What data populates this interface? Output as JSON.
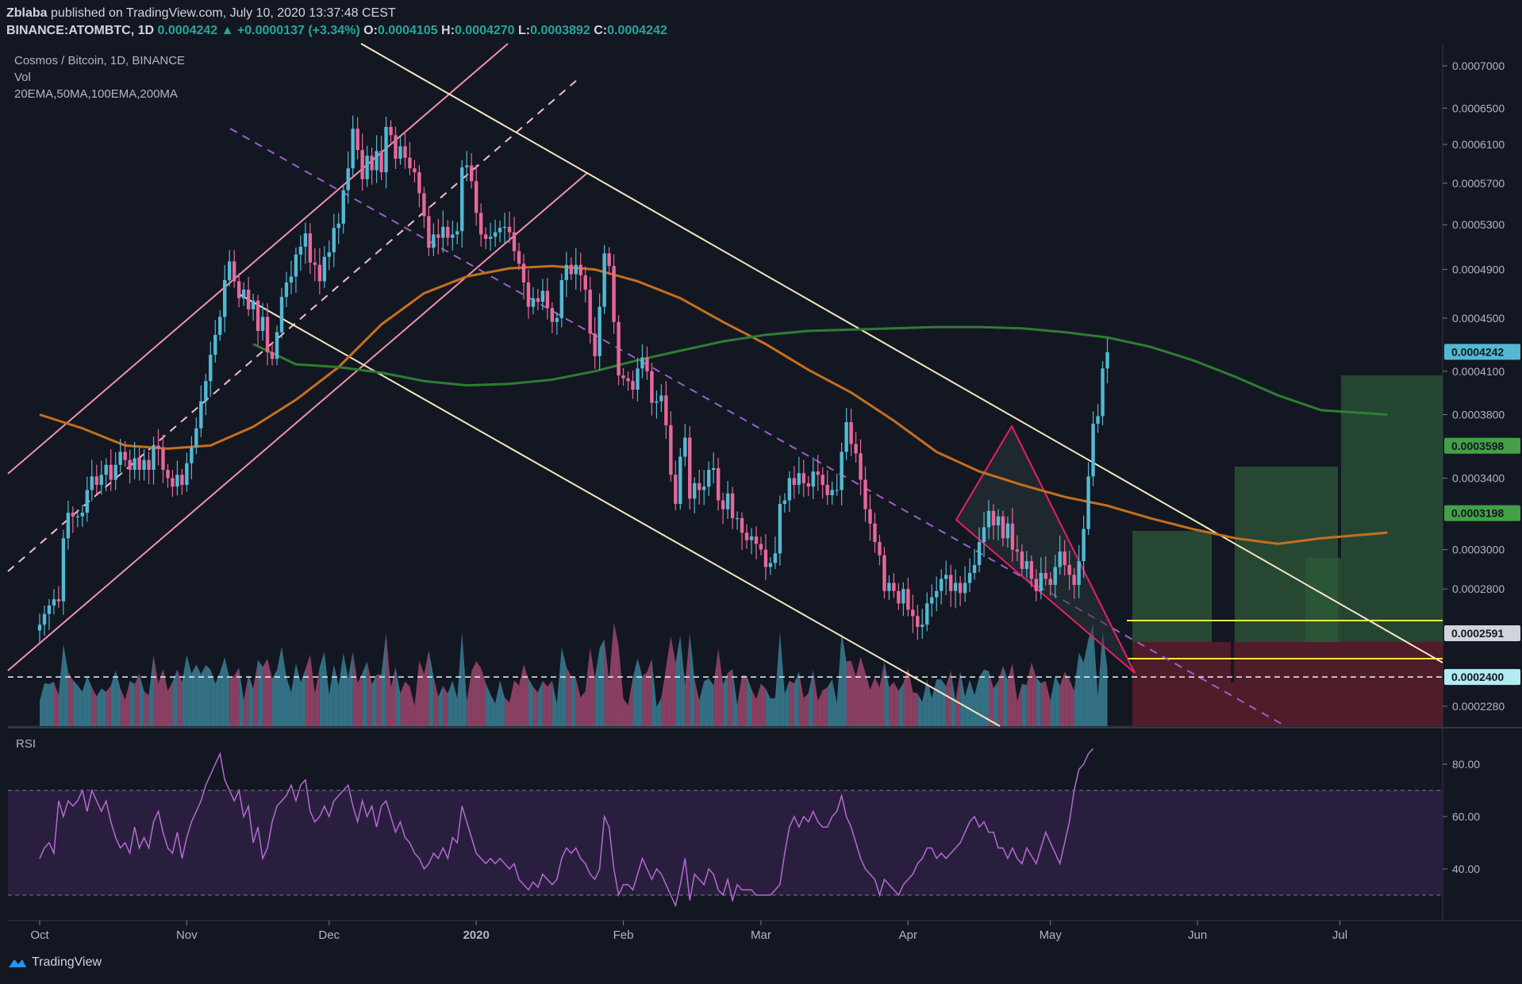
{
  "header": {
    "publisher": "Zblaba",
    "published_text": "published on TradingView.com, July 10, 2020 13:37:48 CEST",
    "symbol": "BINANCE:ATOMBTC, 1D",
    "last": "0.0004242",
    "arrow": "▲",
    "change": "+0.0000137 (+3.34%)",
    "o_label": "O:",
    "o": "0.0004105",
    "h_label": "H:",
    "h": "0.0004270",
    "l_label": "L:",
    "l": "0.0003892",
    "c_label": "C:",
    "c": "0.0004242"
  },
  "legend": {
    "title": "Cosmos / Bitcoin, 1D, BINANCE",
    "vol": "Vol",
    "ma": "20EMA,50MA,100EMA,200MA"
  },
  "footer": {
    "brand": "TradingView"
  },
  "colors": {
    "background": "#131722",
    "up": "#53b9d3",
    "down": "#e8679a",
    "ema100": "#c66f1d",
    "ma200": "#2e7d32",
    "trendline": "#f5e6c0",
    "channel": "#f48fb1",
    "rsi_line": "#b36bd1",
    "rsi_band": "#2a1e3f"
  },
  "chart_data": [
    {
      "type": "candlestick",
      "title": "Cosmos / Bitcoin, 1D, BINANCE",
      "x_ticks": [
        "Oct",
        "Nov",
        "Dec",
        "2020",
        "Feb",
        "Mar",
        "Apr",
        "May",
        "Jun",
        "Jul"
      ],
      "x_tick_days": [
        0,
        31,
        61,
        92,
        123,
        152,
        183,
        213,
        244,
        274
      ],
      "y_axis_scale": "log",
      "y_ticks": [
        "0.0007000",
        "0.0006500",
        "0.0006100",
        "0.0005700",
        "0.0005300",
        "0.0004900",
        "0.0004500",
        "0.0004100",
        "0.0003800",
        "0.0003400",
        "0.0003000",
        "0.0002800",
        "0.0002280"
      ],
      "y_tick_values": [
        0.0007,
        0.00065,
        0.00061,
        0.00057,
        0.00053,
        0.00049,
        0.00045,
        0.00041,
        0.00038,
        0.00034,
        0.0003,
        0.00028,
        0.000228
      ],
      "price_labels": [
        {
          "text": "0.0004242",
          "value": 0.0004242,
          "color": "#53b9d3"
        },
        {
          "text": "0.0003598",
          "value": 0.0003598,
          "color": "#43a047"
        },
        {
          "text": "0.0003198",
          "value": 0.0003198,
          "color": "#43a047"
        },
        {
          "text": "0.0002591",
          "value": 0.0002591,
          "color": "#d1d4dc"
        },
        {
          "text": "0.0002400",
          "value": 0.00024,
          "color": "#b2ebf2"
        }
      ],
      "start_date": "2019-09-27",
      "closes": [
        0.000263,
        0.000268,
        0.000272,
        0.000275,
        0.000274,
        0.000306,
        0.00032,
        0.000318,
        0.000318,
        0.00032,
        0.000333,
        0.000341,
        0.000336,
        0.000342,
        0.000348,
        0.000339,
        0.000348,
        0.000356,
        0.000351,
        0.000345,
        0.000352,
        0.000345,
        0.000351,
        0.000345,
        0.00036,
        0.000358,
        0.000345,
        0.00034,
        0.000335,
        0.000342,
        0.000336,
        0.000349,
        0.000359,
        0.000371,
        0.000389,
        0.000403,
        0.000422,
        0.000437,
        0.000451,
        0.000481,
        0.000497,
        0.00048,
        0.000466,
        0.000473,
        0.000457,
        0.000464,
        0.00044,
        0.000451,
        0.000424,
        0.000419,
        0.000439,
        0.000467,
        0.000479,
        0.000484,
        0.000503,
        0.00051,
        0.000522,
        0.000496,
        0.000494,
        0.00048,
        0.000501,
        0.000505,
        0.000527,
        0.000531,
        0.000563,
        0.000585,
        0.000627,
        0.000604,
        0.000574,
        0.000598,
        0.000583,
        0.000603,
        0.000581,
        0.000629,
        0.00062,
        0.000595,
        0.000608,
        0.000596,
        0.000585,
        0.000581,
        0.00056,
        0.000538,
        0.000509,
        0.000521,
        0.000518,
        0.000528,
        0.000518,
        0.000521,
        0.000524,
        0.000586,
        0.000588,
        0.000572,
        0.000541,
        0.000521,
        0.000517,
        0.000519,
        0.000523,
        0.000527,
        0.000528,
        0.000523,
        0.000506,
        0.000495,
        0.000479,
        0.000459,
        0.000466,
        0.000463,
        0.000472,
        0.000458,
        0.000447,
        0.00045,
        0.000481,
        0.000494,
        0.000486,
        0.000494,
        0.000485,
        0.000473,
        0.000438,
        0.000421,
        0.000459,
        0.000504,
        0.000493,
        0.000447,
        0.000407,
        0.000405,
        0.000403,
        0.000397,
        0.000412,
        0.00042,
        0.00041,
        0.000388,
        0.000389,
        0.000393,
        0.000373,
        0.000342,
        0.000325,
        0.000353,
        0.000365,
        0.000328,
        0.000337,
        0.000333,
        0.000335,
        0.000345,
        0.000346,
        0.000327,
        0.000322,
        0.000331,
        0.000317,
        0.000317,
        0.000309,
        0.000305,
        0.000307,
        0.000303,
        0.0003,
        0.000291,
        0.000293,
        0.000298,
        0.000325,
        0.000327,
        0.00034,
        0.000336,
        0.000343,
        0.000337,
        0.000335,
        0.000344,
        0.000342,
        0.000336,
        0.00033,
        0.000333,
        0.000333,
        0.000356,
        0.000375,
        0.000361,
        0.000355,
        0.000339,
        0.000322,
        0.000314,
        0.000304,
        0.000297,
        0.000279,
        0.000283,
        0.000279,
        0.000273,
        0.00028,
        0.00027,
        0.000267,
        0.000262,
        0.000263,
        0.000273,
        0.000276,
        0.000279,
        0.000285,
        0.000287,
        0.000279,
        0.000283,
        0.000278,
        0.000283,
        0.000288,
        0.000292,
        0.000304,
        0.000312,
        0.000321,
        0.000313,
        0.000318,
        0.000306,
        0.000314,
        0.0003,
        0.000299,
        0.00029,
        0.000294,
        0.000285,
        0.000279,
        0.000288,
        0.000285,
        0.000282,
        0.000291,
        0.000299,
        0.000292,
        0.000287,
        0.000282,
        0.000294,
        0.000311,
        0.000341,
        0.000374,
        0.000379,
        0.000412,
        0.000424
      ],
      "series": [
        {
          "name": "100EMA",
          "color": "#c66f1d",
          "values": [
            0.00038,
            0.000371,
            0.00036,
            0.000358,
            0.00036,
            0.000372,
            0.00039,
            0.000413,
            0.000445,
            0.00047,
            0.000484,
            0.000491,
            0.000493,
            0.00049,
            0.00048,
            0.000466,
            0.000447,
            0.00043,
            0.000411,
            0.000395,
            0.000376,
            0.000356,
            0.000344,
            0.000336,
            0.000329,
            0.000324,
            0.000317,
            0.000311,
            0.000306,
            0.000303,
            0.000306,
            0.000309
          ]
        },
        {
          "name": "200MA",
          "color": "#2e7d32",
          "values": [
            null,
            null,
            null,
            null,
            null,
            0.00043,
            0.000415,
            0.000413,
            0.000409,
            0.000403,
            0.0004,
            0.000401,
            0.000404,
            0.00041,
            0.000418,
            0.000425,
            0.000432,
            0.000437,
            0.00044,
            0.000441,
            0.000442,
            0.000443,
            0.000443,
            0.000442,
            0.000439,
            0.000435,
            0.000428,
            0.000418,
            0.000406,
            0.000393,
            0.000383,
            0.00038
          ]
        }
      ],
      "series_days": [
        0,
        9,
        18,
        27,
        36,
        45,
        54,
        63,
        72,
        81,
        90,
        99,
        108,
        117,
        126,
        135,
        144,
        153,
        162,
        171,
        180,
        189,
        198,
        207,
        216,
        225,
        234,
        243,
        252,
        261,
        270,
        284
      ]
    },
    {
      "type": "line",
      "title": "RSI",
      "y_ticks": [
        "80.00",
        "60.00",
        "40.00"
      ],
      "y_tick_values": [
        80,
        60,
        40
      ],
      "bands": [
        70,
        30
      ],
      "values": [
        44,
        48,
        50,
        46,
        66,
        60,
        66,
        64,
        66,
        70,
        62,
        70,
        66,
        62,
        66,
        58,
        52,
        48,
        50,
        46,
        56,
        48,
        52,
        48,
        58,
        62,
        54,
        48,
        46,
        54,
        44,
        52,
        58,
        62,
        66,
        72,
        76,
        80,
        84,
        74,
        70,
        66,
        70,
        60,
        64,
        50,
        56,
        44,
        48,
        58,
        64,
        66,
        68,
        72,
        66,
        72,
        74,
        62,
        58,
        60,
        64,
        60,
        66,
        68,
        70,
        72,
        64,
        58,
        66,
        60,
        64,
        56,
        64,
        66,
        60,
        54,
        58,
        52,
        50,
        46,
        44,
        40,
        42,
        46,
        44,
        48,
        44,
        52,
        50,
        64,
        58,
        52,
        46,
        44,
        42,
        44,
        42,
        44,
        42,
        40,
        42,
        36,
        34,
        32,
        35,
        33,
        38,
        36,
        34,
        36,
        44,
        48,
        46,
        48,
        44,
        42,
        38,
        36,
        40,
        60,
        56,
        40,
        30,
        34,
        34,
        32,
        38,
        44,
        40,
        36,
        40,
        38,
        34,
        30,
        26,
        34,
        44,
        28,
        38,
        36,
        34,
        40,
        38,
        32,
        30,
        36,
        28,
        34,
        32,
        32,
        32,
        30,
        30,
        30,
        30,
        32,
        34,
        46,
        56,
        60,
        56,
        60,
        58,
        62,
        58,
        56,
        56,
        60,
        62,
        68,
        60,
        56,
        50,
        44,
        40,
        38,
        36,
        30,
        36,
        34,
        32,
        30,
        34,
        36,
        38,
        42,
        44,
        48,
        48,
        44,
        46,
        44,
        46,
        48,
        50,
        54,
        58,
        60,
        56,
        58,
        54,
        54,
        48,
        48,
        44,
        48,
        44,
        42,
        48,
        45,
        42,
        48,
        54,
        50,
        46,
        42,
        50,
        58,
        70,
        78,
        80,
        84,
        86
      ]
    }
  ]
}
